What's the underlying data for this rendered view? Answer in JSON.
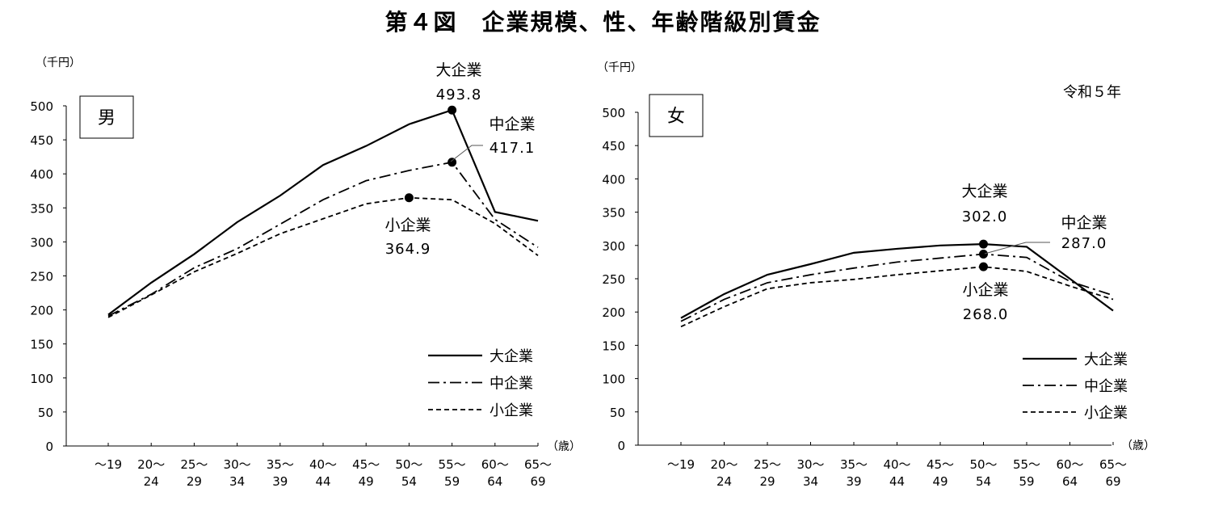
{
  "title": "第４図　企業規模、性、年齢階級別賃金",
  "note": "令和５年",
  "chart_data": [
    {
      "type": "line",
      "panel_label": "男",
      "y_unit": "（千円）",
      "x_unit": "（歳）",
      "ylim": [
        0,
        500
      ],
      "yticks": [
        0,
        50,
        100,
        150,
        200,
        250,
        300,
        350,
        400,
        450,
        500
      ],
      "categories": [
        [
          "～19",
          ""
        ],
        [
          "20～",
          "24"
        ],
        [
          "25～",
          "29"
        ],
        [
          "30～",
          "34"
        ],
        [
          "35～",
          "39"
        ],
        [
          "40～",
          "44"
        ],
        [
          "45～",
          "49"
        ],
        [
          "50～",
          "54"
        ],
        [
          "55～",
          "59"
        ],
        [
          "60～",
          "64"
        ],
        [
          "65～",
          "69"
        ]
      ],
      "series": [
        {
          "name": "大企業",
          "style": "solid",
          "values": [
            193,
            240,
            282,
            329,
            368,
            413,
            441,
            473,
            493.8,
            344,
            331
          ]
        },
        {
          "name": "中企業",
          "style": "dashdot",
          "values": [
            191,
            223,
            262,
            290,
            326,
            362,
            390,
            405,
            417.1,
            333,
            292
          ]
        },
        {
          "name": "小企業",
          "style": "dash",
          "values": [
            189,
            222,
            256,
            283,
            312,
            334,
            356,
            364.9,
            362,
            327,
            280
          ]
        }
      ],
      "annotations": [
        {
          "series": "大企業",
          "category": "55～59",
          "label": "大企業",
          "value_text": "493.8"
        },
        {
          "series": "中企業",
          "category": "55～59",
          "label": "中企業",
          "value_text": "417.1"
        },
        {
          "series": "小企業",
          "category": "50～54",
          "label": "小企業",
          "value_text": "364.9"
        }
      ],
      "legend": [
        "大企業",
        "中企業",
        "小企業"
      ],
      "legend_position": "bottom-right"
    },
    {
      "type": "line",
      "panel_label": "女",
      "y_unit": "（千円）",
      "x_unit": "（歳）",
      "ylim": [
        0,
        500
      ],
      "yticks": [
        0,
        50,
        100,
        150,
        200,
        250,
        300,
        350,
        400,
        450,
        500
      ],
      "categories": [
        [
          "～19",
          ""
        ],
        [
          "20～",
          "24"
        ],
        [
          "25～",
          "29"
        ],
        [
          "30～",
          "34"
        ],
        [
          "35～",
          "39"
        ],
        [
          "40～",
          "44"
        ],
        [
          "45～",
          "49"
        ],
        [
          "50～",
          "54"
        ],
        [
          "55～",
          "59"
        ],
        [
          "60～",
          "64"
        ],
        [
          "65～",
          "69"
        ]
      ],
      "series": [
        {
          "name": "大企業",
          "style": "solid",
          "values": [
            191,
            227,
            256,
            272,
            289,
            295,
            300,
            302.0,
            298,
            250,
            202
          ]
        },
        {
          "name": "中企業",
          "style": "dashdot",
          "values": [
            186,
            219,
            244,
            256,
            266,
            275,
            281,
            287.0,
            282,
            246,
            225
          ]
        },
        {
          "name": "小企業",
          "style": "dash",
          "values": [
            178,
            208,
            235,
            244,
            249,
            256,
            262,
            268.0,
            261,
            239,
            219
          ]
        }
      ],
      "annotations": [
        {
          "series": "大企業",
          "category": "50～54",
          "label": "大企業",
          "value_text": "302.0"
        },
        {
          "series": "中企業",
          "category": "50～54",
          "label": "中企業",
          "value_text": "287.0"
        },
        {
          "series": "小企業",
          "category": "50～54",
          "label": "小企業",
          "value_text": "268.0"
        }
      ],
      "legend": [
        "大企業",
        "中企業",
        "小企業"
      ],
      "legend_position": "bottom-right"
    }
  ]
}
